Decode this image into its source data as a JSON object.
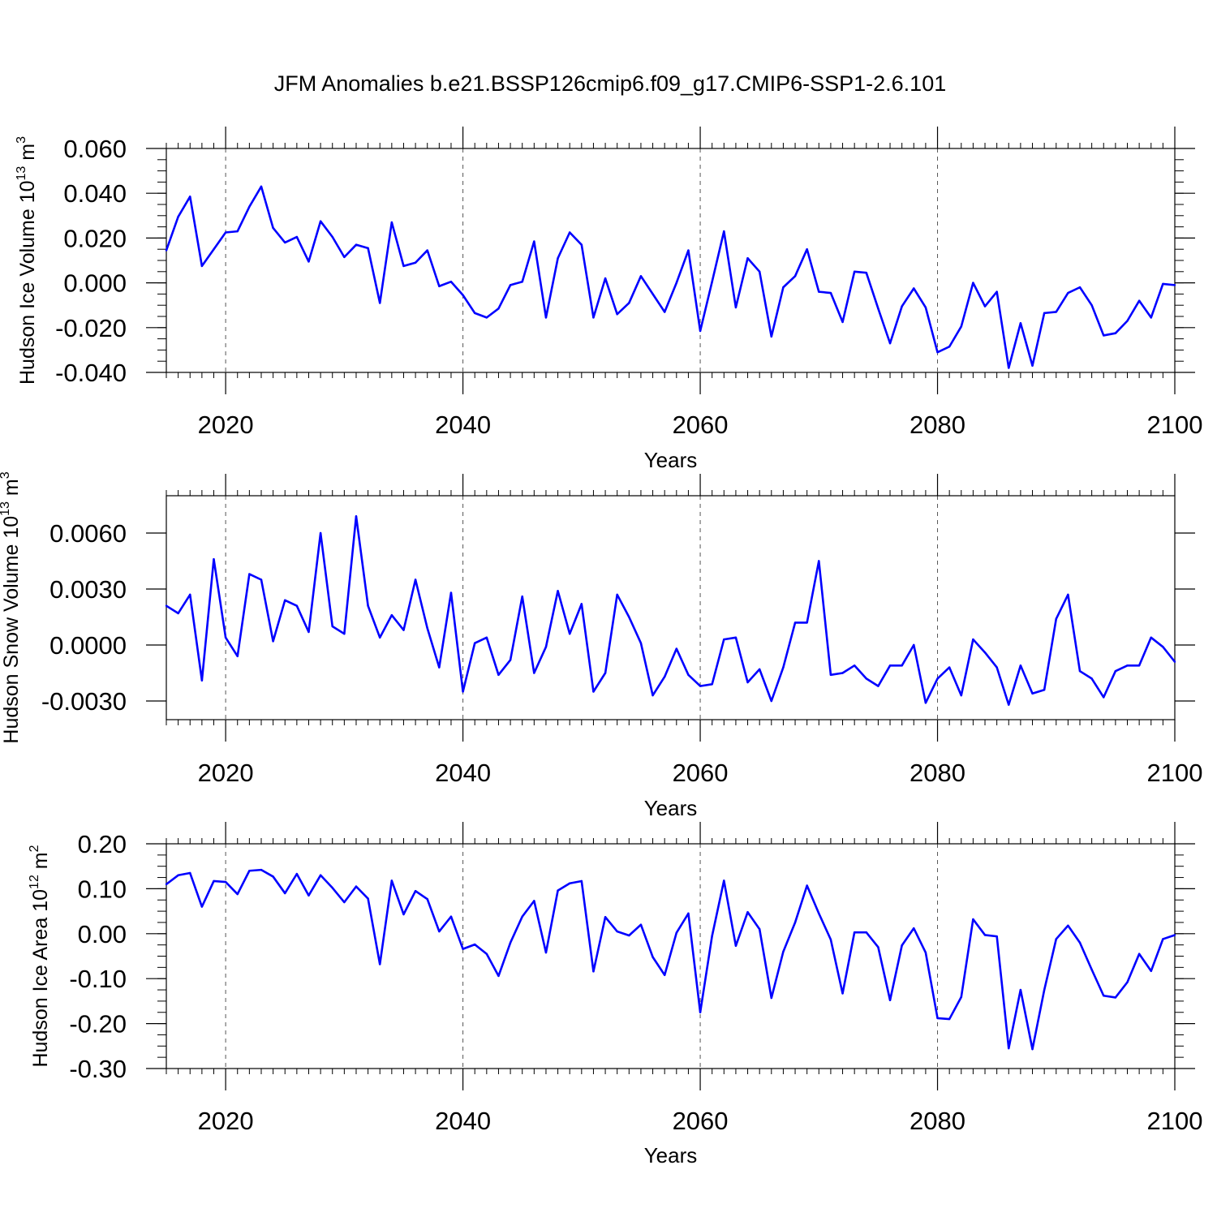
{
  "title": "JFM Anomalies b.e21.BSSP126cmip6.f09_g17.CMIP6-SSP1-2.6.101",
  "line_color": "#0000ff",
  "chart_data": [
    {
      "type": "line",
      "ylabel": {
        "text": "Hudson Ice Volume 10",
        "sup1": "13",
        "mid": " m",
        "sup2": "3"
      },
      "xlabel": "Years",
      "xlim": [
        2015,
        2100
      ],
      "ylim": [
        -0.04,
        0.06
      ],
      "xticks": [
        2020,
        2040,
        2060,
        2080,
        2100
      ],
      "xtick_labels": [
        "2020",
        "2040",
        "2060",
        "2080",
        "2100"
      ],
      "yticks": [
        -0.04,
        -0.02,
        0.0,
        0.02,
        0.04,
        0.06
      ],
      "ytick_labels": [
        "-0.040",
        "-0.020",
        "0.000",
        "0.020",
        "0.040",
        "0.060"
      ],
      "yminor": 0.005,
      "x_start": 2015,
      "values": [
        0.0145,
        0.0295,
        0.0385,
        0.0075,
        0.015,
        0.0225,
        0.023,
        0.034,
        0.043,
        0.0245,
        0.018,
        0.0205,
        0.0095,
        0.0275,
        0.0205,
        0.0115,
        0.017,
        0.0155,
        -0.009,
        0.027,
        0.0075,
        0.009,
        0.0145,
        -0.0015,
        0.0005,
        -0.0055,
        -0.0135,
        -0.0155,
        -0.0115,
        -0.001,
        0.0005,
        0.0185,
        -0.0155,
        0.011,
        0.0225,
        0.017,
        -0.0155,
        0.002,
        -0.014,
        -0.009,
        0.003,
        -0.005,
        -0.013,
        0.0,
        0.0145,
        -0.0215,
        0.0005,
        0.023,
        -0.011,
        0.011,
        0.005,
        -0.024,
        -0.002,
        0.003,
        0.015,
        -0.004,
        -0.0045,
        -0.0175,
        0.005,
        0.0045,
        -0.0115,
        -0.027,
        -0.0105,
        -0.0025,
        -0.011,
        -0.031,
        -0.0285,
        -0.0195,
        0.0,
        -0.0105,
        -0.004,
        -0.038,
        -0.018,
        -0.037,
        -0.0135,
        -0.013,
        -0.0045,
        -0.002,
        -0.01,
        -0.0235,
        -0.0225,
        -0.017,
        -0.008,
        -0.0155,
        -0.0005,
        -0.001
      ]
    },
    {
      "type": "line",
      "ylabel": {
        "text": "Hudson Snow Volume 10",
        "sup1": "13",
        "mid": " m",
        "sup2": "3"
      },
      "xlabel": "Years",
      "xlim": [
        2015,
        2100
      ],
      "ylim": [
        -0.004,
        0.008
      ],
      "xticks": [
        2020,
        2040,
        2060,
        2080,
        2100
      ],
      "xtick_labels": [
        "2020",
        "2040",
        "2060",
        "2080",
        "2100"
      ],
      "yticks": [
        -0.003,
        0.0,
        0.003,
        0.006
      ],
      "ytick_labels": [
        "-0.0030",
        "0.0000",
        "0.0030",
        "0.0060"
      ],
      "yminor": null,
      "x_start": 2015,
      "values": [
        0.0021,
        0.0017,
        0.0027,
        -0.0019,
        0.0046,
        0.0004,
        -0.0006,
        0.0038,
        0.0035,
        0.0002,
        0.0024,
        0.0021,
        0.0007,
        0.006,
        0.001,
        0.0006,
        0.0069,
        0.0021,
        0.0004,
        0.0016,
        0.0008,
        0.0035,
        0.0009,
        -0.0012,
        0.0028,
        -0.0025,
        0.0001,
        0.0004,
        -0.0016,
        -0.0008,
        0.0026,
        -0.0015,
        -0.0001,
        0.0029,
        0.0006,
        0.0022,
        -0.0025,
        -0.0015,
        0.0027,
        0.0015,
        0.0001,
        -0.0027,
        -0.0017,
        -0.0002,
        -0.0016,
        -0.0022,
        -0.0021,
        0.0003,
        0.0004,
        -0.002,
        -0.0013,
        -0.003,
        -0.0012,
        0.0012,
        0.0012,
        0.0045,
        -0.0016,
        -0.0015,
        -0.0011,
        -0.0018,
        -0.0022,
        -0.0011,
        -0.0011,
        0.0,
        -0.0031,
        -0.0018,
        -0.0012,
        -0.0027,
        0.0003,
        -0.0004,
        -0.0012,
        -0.0032,
        -0.0011,
        -0.0026,
        -0.0024,
        0.0014,
        0.0027,
        -0.0014,
        -0.0018,
        -0.0028,
        -0.0014,
        -0.0011,
        -0.0011,
        0.0004,
        -0.0001,
        -0.0009
      ]
    },
    {
      "type": "line",
      "ylabel": {
        "text": "Hudson Ice Area 10",
        "sup1": "12",
        "mid": " m",
        "sup2": "2"
      },
      "xlabel": "Years",
      "xlim": [
        2015,
        2100
      ],
      "ylim": [
        -0.3,
        0.2
      ],
      "xticks": [
        2020,
        2040,
        2060,
        2080,
        2100
      ],
      "xtick_labels": [
        "2020",
        "2040",
        "2060",
        "2080",
        "2100"
      ],
      "yticks": [
        -0.3,
        -0.2,
        -0.1,
        0.0,
        0.1,
        0.2
      ],
      "ytick_labels": [
        "-0.30",
        "-0.20",
        "-0.10",
        "0.00",
        "0.10",
        "0.20"
      ],
      "yminor": 0.025,
      "x_start": 2015,
      "values": [
        0.11,
        0.13,
        0.135,
        0.06,
        0.117,
        0.115,
        0.088,
        0.14,
        0.142,
        0.127,
        0.09,
        0.133,
        0.085,
        0.13,
        0.102,
        0.07,
        0.105,
        0.078,
        -0.068,
        0.118,
        0.043,
        0.095,
        0.077,
        0.005,
        0.038,
        -0.034,
        -0.024,
        -0.045,
        -0.094,
        -0.02,
        0.038,
        0.073,
        -0.042,
        0.096,
        0.112,
        0.117,
        -0.084,
        0.037,
        0.005,
        -0.004,
        0.02,
        -0.052,
        -0.092,
        0.002,
        0.045,
        -0.175,
        -0.005,
        0.118,
        -0.027,
        0.048,
        0.01,
        -0.143,
        -0.04,
        0.025,
        0.107,
        0.045,
        -0.013,
        -0.133,
        0.003,
        0.003,
        -0.03,
        -0.148,
        -0.026,
        0.012,
        -0.042,
        -0.188,
        -0.19,
        -0.141,
        0.032,
        -0.003,
        -0.006,
        -0.255,
        -0.125,
        -0.257,
        -0.125,
        -0.012,
        0.018,
        -0.02,
        -0.08,
        -0.138,
        -0.142,
        -0.108,
        -0.045,
        -0.083,
        -0.012,
        -0.003
      ]
    }
  ]
}
